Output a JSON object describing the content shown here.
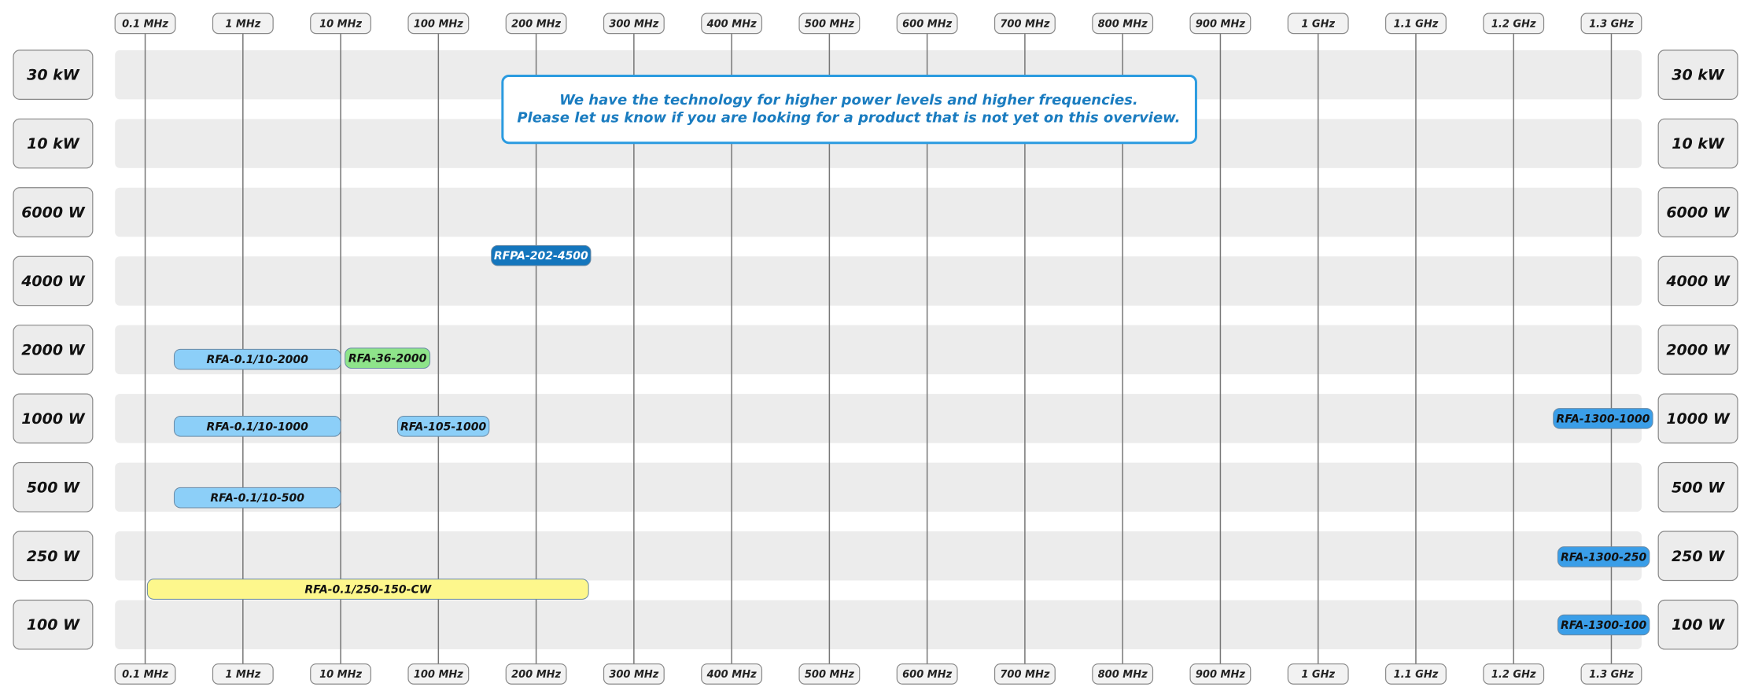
{
  "frequencies": [
    "0.1 MHz",
    "1 MHz",
    "10 MHz",
    "100 MHz",
    "200 MHz",
    "300 MHz",
    "400 MHz",
    "500 MHz",
    "600 MHz",
    "700 MHz",
    "800 MHz",
    "900 MHz",
    "1 GHz",
    "1.1 GHz",
    "1.2 GHz",
    "1.3 GHz"
  ],
  "rows": [
    {
      "power": "30 kW",
      "products": []
    },
    {
      "power": "10 kW",
      "products": []
    },
    {
      "power": "6000 W",
      "products": []
    },
    {
      "power": "4000 W",
      "products": [
        {
          "label": "RFPA-202-4500"
        }
      ]
    },
    {
      "power": "2000 W",
      "products": [
        {
          "label": "RFA-0.1/10-2000"
        },
        {
          "label": "RFA-36-2000"
        }
      ]
    },
    {
      "power": "1000 W",
      "products": [
        {
          "label": "RFA-0.1/10-1000"
        },
        {
          "label": "RFA-105-1000"
        },
        {
          "label": "RFA-1300-1000"
        }
      ]
    },
    {
      "power": "500 W",
      "products": [
        {
          "label": "RFA-0.1/10-500"
        }
      ]
    },
    {
      "power": "250 W",
      "products": [
        {
          "label": "RFA-1300-250"
        },
        {
          "label": "RFA-0.1/250-150-CW"
        }
      ]
    },
    {
      "power": "100 W",
      "products": [
        {
          "label": "RFA-1300-100"
        }
      ]
    }
  ],
  "note": [
    "We have the technology for higher power levels and higher frequencies.",
    "Please let us know if you are looking for a product that is not yet on this overview."
  ]
}
